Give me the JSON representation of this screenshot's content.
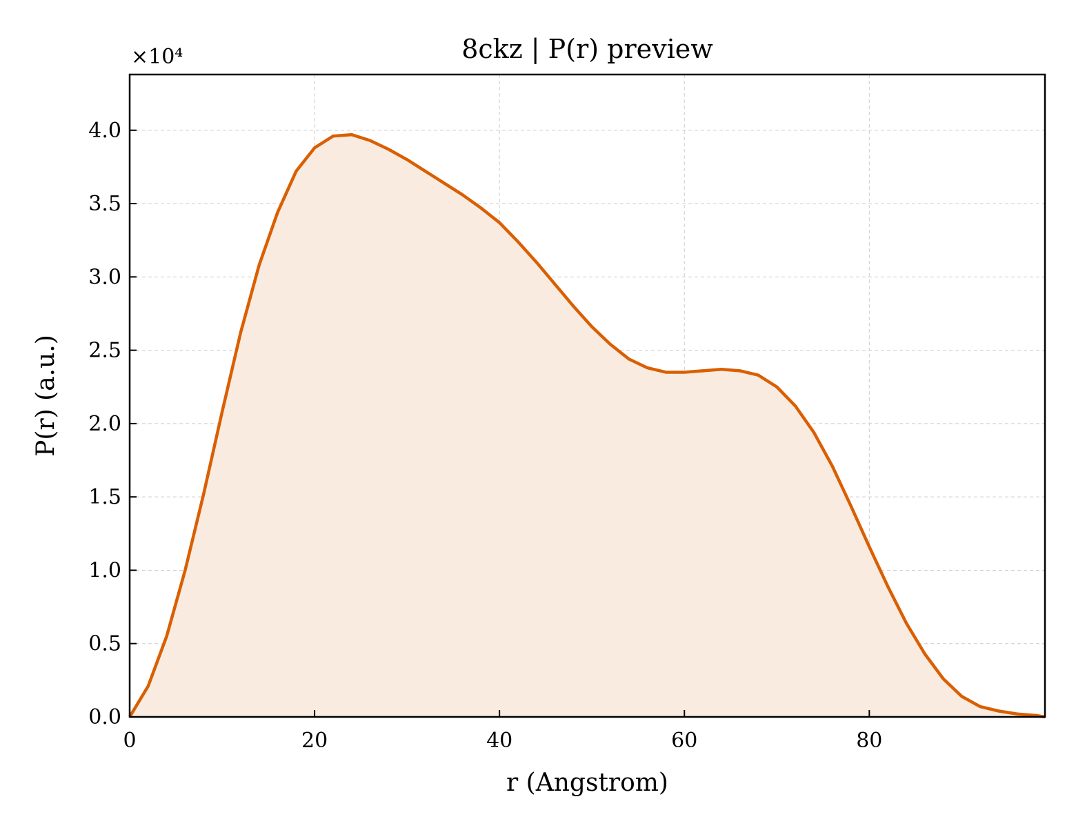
{
  "chart_data": {
    "type": "area",
    "title": "8ckz | P(r) preview",
    "xlabel": "r (Angstrom)",
    "ylabel": "P(r) (a.u.)",
    "y_offset_label": "×10⁴",
    "xlim": [
      0,
      99
    ],
    "ylim": [
      0,
      4.38
    ],
    "xticks": [
      0,
      20,
      40,
      60,
      80
    ],
    "xtick_labels": [
      "0",
      "20",
      "40",
      "60",
      "80"
    ],
    "yticks": [
      0,
      0.5,
      1.0,
      1.5,
      2.0,
      2.5,
      3.0,
      3.5,
      4.0
    ],
    "ytick_labels": [
      "0.0",
      "0.5",
      "1.0",
      "1.5",
      "2.0",
      "2.5",
      "3.0",
      "3.5",
      "4.0"
    ],
    "grid": true,
    "line_color": "#d95f02",
    "fill_color": "#f9ebe0",
    "series": [
      {
        "x": [
          0,
          2,
          4,
          6,
          8,
          10,
          12,
          14,
          16,
          18,
          20,
          22,
          24,
          26,
          28,
          30,
          32,
          34,
          36,
          38,
          40,
          42,
          44,
          46,
          48,
          50,
          52,
          54,
          56,
          58,
          60,
          62,
          64,
          66,
          68,
          70,
          72,
          74,
          76,
          78,
          80,
          82,
          84,
          86,
          88,
          90,
          92,
          94,
          96,
          98,
          99
        ],
        "y": [
          0.0,
          0.21,
          0.55,
          1.0,
          1.52,
          2.08,
          2.62,
          3.08,
          3.44,
          3.72,
          3.88,
          3.96,
          3.97,
          3.93,
          3.87,
          3.8,
          3.72,
          3.64,
          3.56,
          3.47,
          3.37,
          3.24,
          3.1,
          2.95,
          2.8,
          2.66,
          2.54,
          2.44,
          2.38,
          2.35,
          2.35,
          2.36,
          2.37,
          2.36,
          2.33,
          2.25,
          2.12,
          1.94,
          1.71,
          1.44,
          1.16,
          0.89,
          0.64,
          0.43,
          0.26,
          0.14,
          0.07,
          0.04,
          0.02,
          0.01,
          0.0
        ]
      }
    ]
  }
}
